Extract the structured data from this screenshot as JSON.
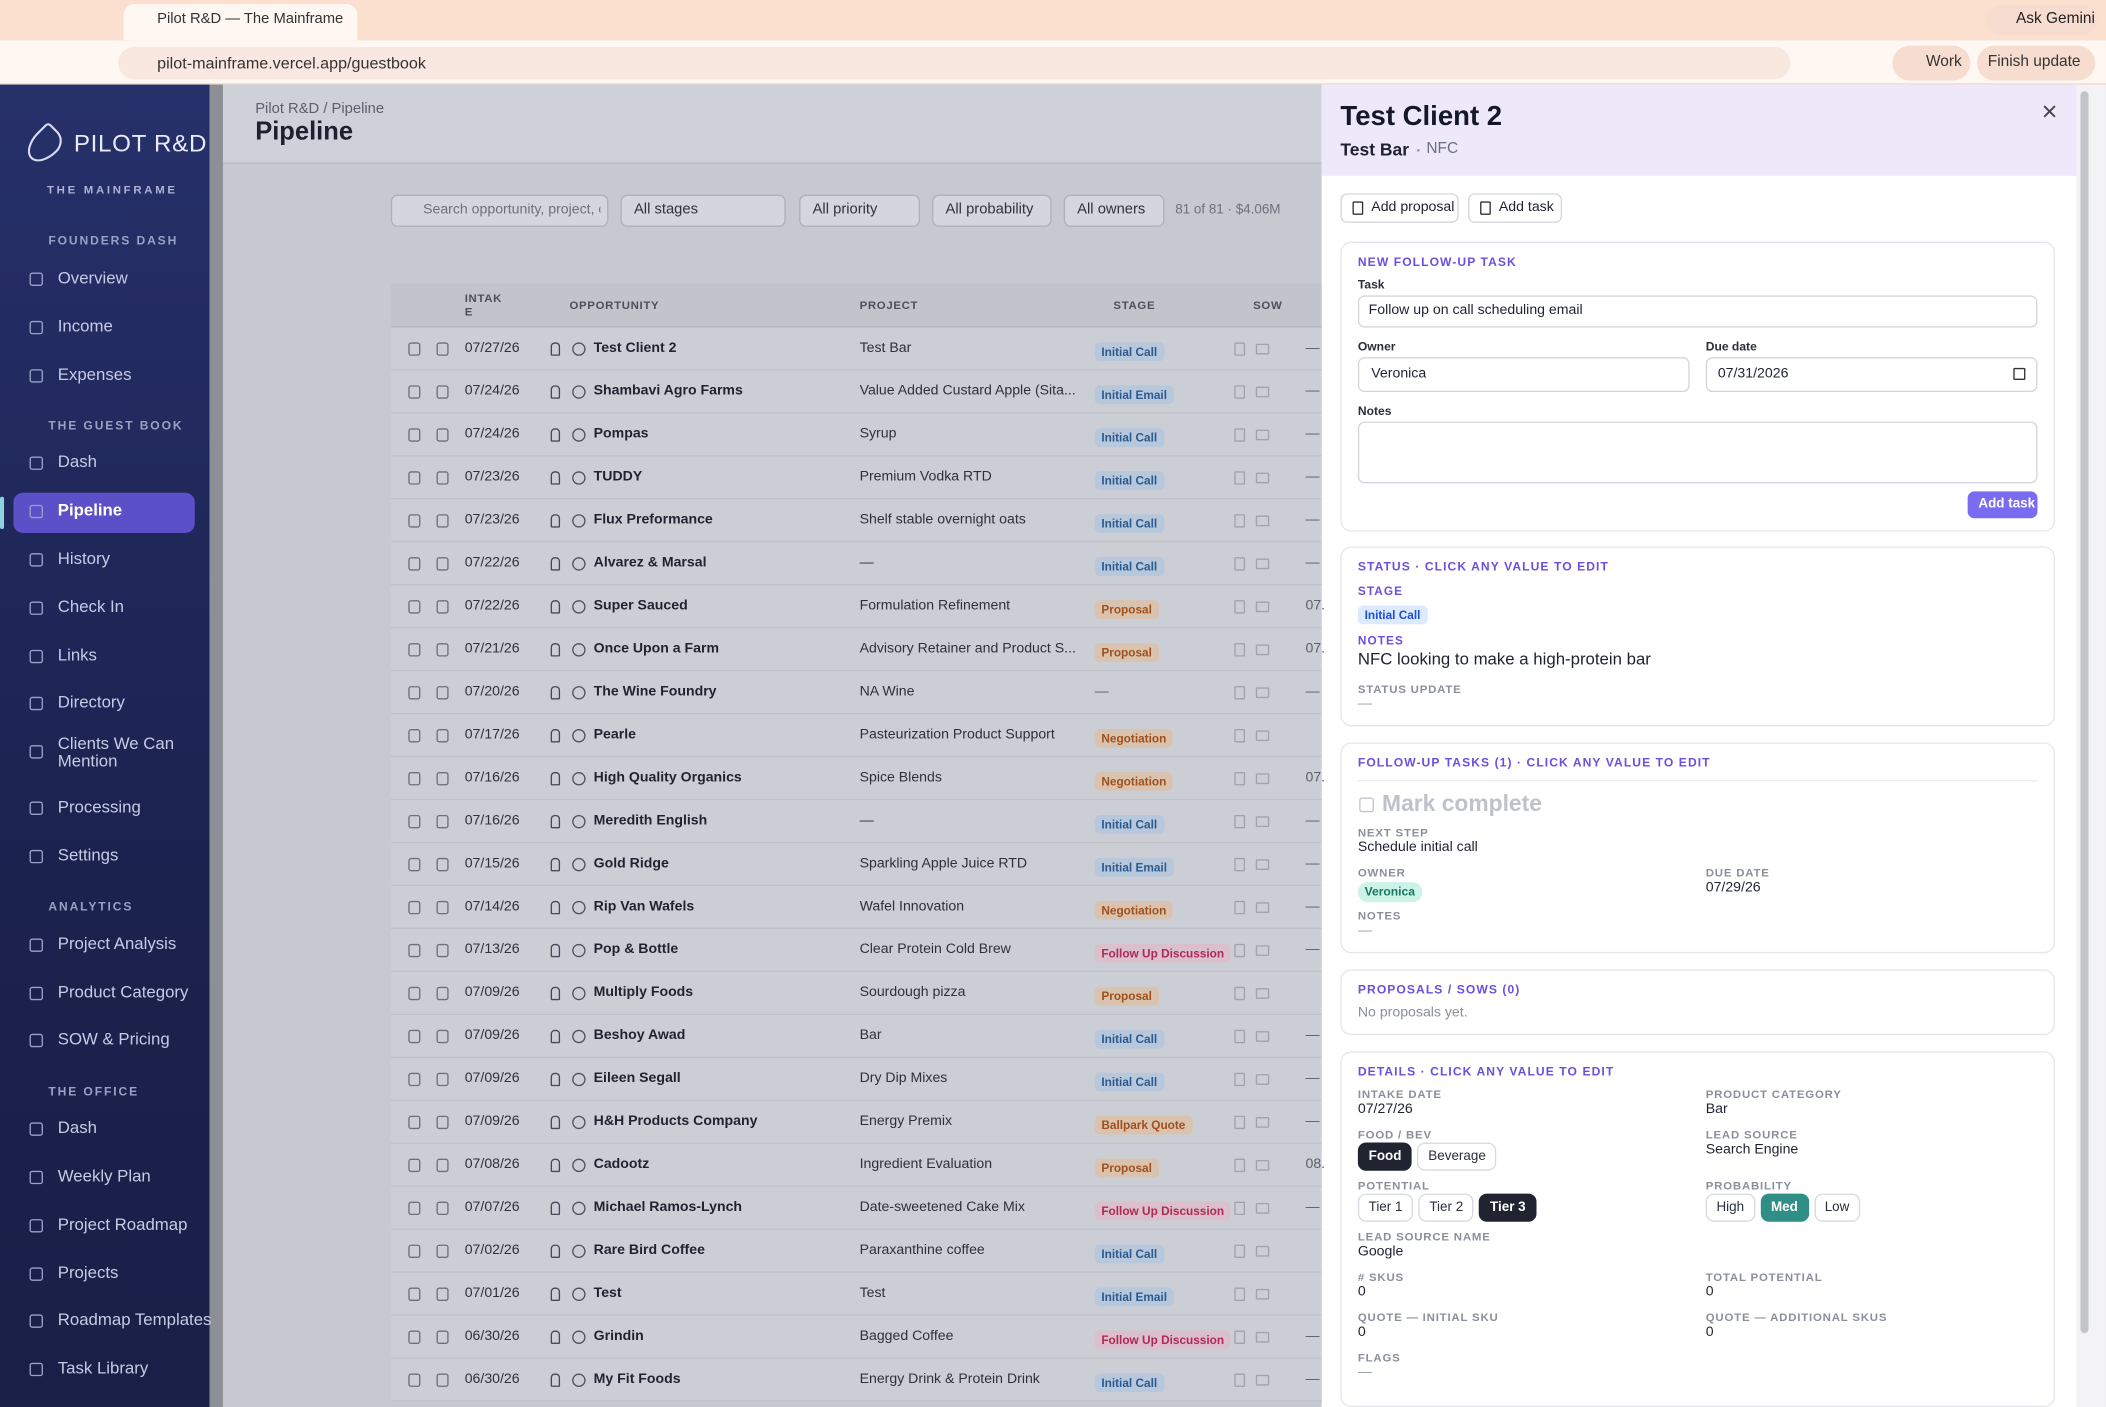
{
  "browser": {
    "tab_title": "Pilot R&D — The Mainframe",
    "url": "pilot-mainframe.vercel.app/guestbook",
    "gemini": "Ask Gemini",
    "profile": "Work",
    "update": "Finish update"
  },
  "sidebar": {
    "brand": "PILOT R&D",
    "tagline": "THE MAINFRAME",
    "sections": [
      {
        "title": "FOUNDERS DASH",
        "items": [
          {
            "label": "Overview"
          },
          {
            "label": "Income"
          },
          {
            "label": "Expenses"
          }
        ]
      },
      {
        "title": "THE GUEST BOOK",
        "items": [
          {
            "label": "Dash"
          },
          {
            "label": "Pipeline",
            "active": true
          },
          {
            "label": "History"
          },
          {
            "label": "Check In"
          },
          {
            "label": "Links"
          },
          {
            "label": "Directory"
          },
          {
            "label": "Clients We Can Mention"
          },
          {
            "label": "Processing"
          },
          {
            "label": "Settings"
          }
        ]
      },
      {
        "title": "ANALYTICS",
        "items": [
          {
            "label": "Project Analysis"
          },
          {
            "label": "Product Category"
          },
          {
            "label": "SOW & Pricing"
          }
        ]
      },
      {
        "title": "THE OFFICE",
        "items": [
          {
            "label": "Dash"
          },
          {
            "label": "Weekly Plan"
          },
          {
            "label": "Project Roadmap"
          },
          {
            "label": "Projects"
          },
          {
            "label": "Roadmap Templates"
          },
          {
            "label": "Task Library"
          }
        ]
      }
    ]
  },
  "main": {
    "breadcrumb": "Pilot R&D / Pipeline",
    "title": "Pipeline",
    "search_placeholder": "Search opportunity, project, c",
    "filters": [
      "All stages",
      "All priority",
      "All probability",
      "All owners"
    ],
    "count": "81 of 81 · $4.06M",
    "columns": [
      "INTAKE",
      "OPPORTUNITY",
      "PROJECT",
      "STAGE",
      "SOW"
    ],
    "rows": [
      {
        "intake": "07/27/26",
        "opportunity": "Test Client 2",
        "project": "Test Bar",
        "stage": "Initial Call",
        "next": "—"
      },
      {
        "intake": "07/24/26",
        "opportunity": "Shambavi Agro Farms",
        "project": "Value Added Custard Apple (Sita...",
        "stage": "Initial Email",
        "next": "—"
      },
      {
        "intake": "07/24/26",
        "opportunity": "Pompas",
        "project": "Syrup",
        "stage": "Initial Call",
        "next": "—"
      },
      {
        "intake": "07/23/26",
        "opportunity": "TUDDY",
        "project": "Premium Vodka RTD",
        "stage": "Initial Call",
        "next": "—"
      },
      {
        "intake": "07/23/26",
        "opportunity": "Flux Preformance",
        "project": "Shelf stable overnight oats",
        "stage": "Initial Call",
        "next": "—"
      },
      {
        "intake": "07/22/26",
        "opportunity": "Alvarez & Marsal",
        "project": "—",
        "stage": "Initial Call",
        "next": "—"
      },
      {
        "intake": "07/22/26",
        "opportunity": "Super Sauced",
        "project": "Formulation Refinement",
        "stage": "Proposal",
        "next": "07."
      },
      {
        "intake": "07/21/26",
        "opportunity": "Once Upon a Farm",
        "project": "Advisory Retainer and Product S...",
        "stage": "Proposal",
        "next": "07."
      },
      {
        "intake": "07/20/26",
        "opportunity": "The Wine Foundry",
        "project": "NA Wine",
        "stage": "—",
        "next": "—"
      },
      {
        "intake": "07/17/26",
        "opportunity": "Pearle",
        "project": "Pasteurization Product Support",
        "stage": "Negotiation"
      },
      {
        "intake": "07/16/26",
        "opportunity": "High Quality Organics",
        "project": "Spice Blends",
        "stage": "Negotiation",
        "next": "07."
      },
      {
        "intake": "07/16/26",
        "opportunity": "Meredith English",
        "project": "—",
        "stage": "Initial Call",
        "next": "—"
      },
      {
        "intake": "07/15/26",
        "opportunity": "Gold Ridge",
        "project": "Sparkling Apple Juice RTD",
        "stage": "Initial Email",
        "next": "—"
      },
      {
        "intake": "07/14/26",
        "opportunity": "Rip Van Wafels",
        "project": "Wafel Innovation",
        "stage": "Negotiation",
        "next": "—"
      },
      {
        "intake": "07/13/26",
        "opportunity": "Pop & Bottle",
        "project": "Clear Protein Cold Brew",
        "stage": "Follow Up Discussion",
        "next": "—"
      },
      {
        "intake": "07/09/26",
        "opportunity": "Multiply Foods",
        "project": "Sourdough pizza",
        "stage": "Proposal"
      },
      {
        "intake": "07/09/26",
        "opportunity": "Beshoy Awad",
        "project": "Bar",
        "stage": "Initial Call",
        "next": "—"
      },
      {
        "intake": "07/09/26",
        "opportunity": "Eileen Segall",
        "project": "Dry Dip Mixes",
        "stage": "Initial Call",
        "next": "—"
      },
      {
        "intake": "07/09/26",
        "opportunity": "H&H Products Company",
        "project": "Energy Premix",
        "stage": "Ballpark Quote",
        "next": "—"
      },
      {
        "intake": "07/08/26",
        "opportunity": "Cadootz",
        "project": "Ingredient Evaluation",
        "stage": "Proposal",
        "next": "08."
      },
      {
        "intake": "07/07/26",
        "opportunity": "Michael Ramos-Lynch",
        "project": "Date-sweetened Cake Mix",
        "stage": "Follow Up Discussion",
        "next": "—"
      },
      {
        "intake": "07/02/26",
        "opportunity": "Rare Bird Coffee",
        "project": "Paraxanthine coffee",
        "stage": "Initial Call"
      },
      {
        "intake": "07/01/26",
        "opportunity": "Test",
        "project": "Test",
        "stage": "Initial Email"
      },
      {
        "intake": "06/30/26",
        "opportunity": "Grindin",
        "project": "Bagged Coffee",
        "stage": "Follow Up Discussion",
        "next": "—"
      },
      {
        "intake": "06/30/26",
        "opportunity": "My Fit Foods",
        "project": "Energy Drink & Protein Drink",
        "stage": "Initial Call",
        "next": "—"
      }
    ]
  },
  "stage_colors": {
    "Initial Call": {
      "bg": "#b7c7dc",
      "fg": "#2d5a8e"
    },
    "Initial Email": {
      "bg": "#b7c7dc",
      "fg": "#2d5a8e"
    },
    "Proposal": {
      "bg": "#d9c3ae",
      "fg": "#a0501c"
    },
    "Negotiation": {
      "bg": "#d9c3ae",
      "fg": "#a0501c"
    },
    "Ballpark Quote": {
      "bg": "#d9c3ae",
      "fg": "#a0501c"
    },
    "Follow Up Discussion": {
      "bg": "#dbbfca",
      "fg": "#ad2a58"
    }
  },
  "panel": {
    "title": "Test Client 2",
    "subtitle": "Test Bar",
    "tag": "NFC",
    "actions": [
      "Add proposal",
      "Add task"
    ],
    "new_task": {
      "heading": "NEW FOLLOW-UP TASK",
      "task_label": "Task",
      "task_value": "Follow up on call scheduling email",
      "owner_label": "Owner",
      "owner_value": "Veronica",
      "due_label": "Due date",
      "due_value": "07/31/2026",
      "notes_label": "Notes",
      "button": "Add task"
    },
    "status": {
      "heading": "STATUS · CLICK ANY VALUE TO EDIT",
      "stage_label": "STAGE",
      "stage": "Initial Call",
      "notes_label": "NOTES",
      "notes": "NFC looking to make a high-protein bar",
      "update_label": "STATUS UPDATE",
      "update": "—"
    },
    "tasks": {
      "heading": "FOLLOW-UP TASKS (1) · CLICK ANY VALUE TO EDIT",
      "complete": "Mark complete",
      "next_label": "NEXT STEP",
      "next": "Schedule initial call",
      "owner_label": "OWNER",
      "owner": "Veronica",
      "due_label": "DUE DATE",
      "due": "07/29/26",
      "notes_label": "NOTES",
      "notes": "—"
    },
    "proposals": {
      "heading": "PROPOSALS / SOWS (0)",
      "empty": "No proposals yet."
    },
    "details": {
      "heading": "DETAILS · CLICK ANY VALUE TO EDIT",
      "rows": [
        [
          {
            "label": "INTAKE DATE",
            "value": "07/27/26"
          },
          {
            "label": "PRODUCT CATEGORY",
            "value": "Bar"
          }
        ],
        [
          {
            "label": "FOOD / BEV",
            "options": [
              "Food",
              "Beverage"
            ],
            "selected": 0,
            "selected_color": "#1f2430"
          },
          {
            "label": "LEAD SOURCE",
            "value": "Search Engine"
          }
        ],
        [
          {
            "label": "POTENTIAL",
            "options": [
              "Tier 1",
              "Tier 2",
              "Tier 3"
            ],
            "selected": 2,
            "selected_color": "#1f2430"
          },
          {
            "label": "PROBABILITY",
            "options": [
              "High",
              "Med",
              "Low"
            ],
            "selected": 1,
            "selected_color": "#2f8f86"
          }
        ],
        [
          {
            "label": "LEAD SOURCE NAME",
            "value": "Google"
          }
        ],
        [
          {
            "label": "# SKUS",
            "value": "0"
          },
          {
            "label": "TOTAL POTENTIAL",
            "value": "0"
          }
        ],
        [
          {
            "label": "QUOTE — INITIAL SKU",
            "value": "0"
          },
          {
            "label": "QUOTE — ADDITIONAL SKUS",
            "value": "0"
          }
        ],
        [
          {
            "label": "FLAGS",
            "value": "—"
          }
        ]
      ]
    }
  }
}
